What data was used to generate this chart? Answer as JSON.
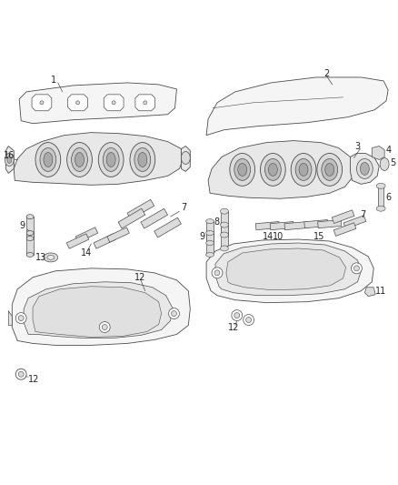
{
  "background_color": "#ffffff",
  "line_color": "#4a4a4a",
  "text_color": "#222222",
  "fig_width": 4.38,
  "fig_height": 5.33,
  "dpi": 100,
  "lw": 0.6
}
